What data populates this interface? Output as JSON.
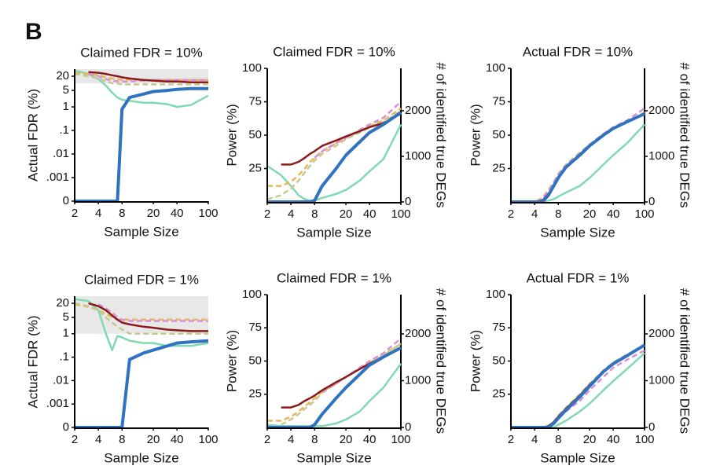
{
  "panel_label": "B",
  "chart_data": [
    {
      "type": "line",
      "title": "Claimed FDR = 10%",
      "xlabel": "Sample Size",
      "ylabel": "Actual FDR (%)",
      "xscale": "log",
      "yscale": "log",
      "xlim": [
        2,
        100
      ],
      "xticks": [
        2,
        4,
        8,
        20,
        40,
        100
      ],
      "ylim": [
        0,
        40
      ],
      "yticks": [
        0,
        {
          "value": 0.001,
          "label": ".001"
        },
        {
          "value": 0.01,
          "label": ".01"
        },
        {
          "value": 0.1,
          "label": ".1"
        },
        1,
        5,
        20
      ],
      "shade_ylim": [
        10,
        40
      ],
      "x": [
        2,
        3,
        4,
        5,
        6,
        7,
        8,
        10,
        15,
        20,
        30,
        40,
        60,
        100
      ],
      "series": [
        {
          "color": "#80d8b4",
          "dash": false,
          "values": [
            35,
            25,
            15,
            8,
            4,
            2.5,
            2,
            1.8,
            1.5,
            1.5,
            1.3,
            1,
            1.2,
            3
          ]
        },
        {
          "color": "#e6b85a",
          "dash": true,
          "values": [
            28,
            25,
            22,
            18,
            16,
            15,
            14,
            14,
            14,
            14,
            14,
            14,
            14,
            14
          ]
        },
        {
          "color": "#c8c890",
          "dash": true,
          "values": [
            25,
            20,
            16,
            12,
            10,
            10,
            9,
            9,
            9,
            9,
            9,
            9,
            9,
            9
          ]
        },
        {
          "color": "#d890d8",
          "dash": true,
          "values": [
            null,
            25,
            20,
            15,
            13,
            12,
            12,
            12,
            13,
            14,
            14,
            14,
            14,
            14
          ]
        },
        {
          "color": "#8b1a1a",
          "dash": false,
          "values": [
            null,
            30,
            28,
            25,
            22,
            20,
            18,
            16,
            14,
            13,
            12,
            12,
            11,
            11
          ]
        },
        {
          "color": "#2f73c0",
          "dash": false,
          "values": [
            0,
            0,
            0,
            0,
            0,
            0,
            0.8,
            2.5,
            3.5,
            4.5,
            5,
            5.5,
            6,
            6
          ]
        }
      ]
    },
    {
      "type": "line",
      "title": "Claimed FDR = 10%",
      "xlabel": "Sample Size",
      "ylabel": "Power (%)",
      "y2label": "# of identified true DEGs",
      "xscale": "log",
      "yscale": "linear",
      "xlim": [
        2,
        100
      ],
      "xticks": [
        2,
        4,
        8,
        20,
        40,
        100
      ],
      "ylim": [
        0,
        100
      ],
      "yticks": [
        25,
        50,
        75,
        100
      ],
      "y2lim": [
        0,
        2930
      ],
      "y2ticks": [
        0,
        1000,
        2000
      ],
      "x": [
        2,
        3,
        4,
        5,
        6,
        7,
        8,
        10,
        15,
        20,
        30,
        40,
        60,
        100
      ],
      "series": [
        {
          "color": "#80d8b4",
          "dash": false,
          "values": [
            27,
            20,
            12,
            5,
            2,
            1,
            1,
            3,
            6,
            9,
            16,
            23,
            32,
            58
          ]
        },
        {
          "color": "#e6b85a",
          "dash": true,
          "values": [
            12,
            12,
            15,
            20,
            25,
            30,
            33,
            38,
            44,
            48,
            53,
            57,
            61,
            70
          ]
        },
        {
          "color": "#c8c890",
          "dash": true,
          "values": [
            2,
            5,
            10,
            16,
            22,
            27,
            31,
            36,
            42,
            47,
            52,
            56,
            60,
            68
          ]
        },
        {
          "color": "#d890d8",
          "dash": true,
          "values": [
            null,
            null,
            null,
            null,
            null,
            null,
            33,
            38,
            44,
            48,
            54,
            58,
            63,
            75
          ]
        },
        {
          "color": "#8b1a1a",
          "dash": false,
          "values": [
            null,
            28,
            28,
            30,
            33,
            36,
            38,
            42,
            46,
            49,
            53,
            56,
            59,
            66
          ]
        },
        {
          "color": "#2f73c0",
          "dash": false,
          "values": [
            0,
            0,
            0,
            0,
            0,
            0,
            1,
            12,
            25,
            35,
            45,
            52,
            58,
            67
          ]
        }
      ]
    },
    {
      "type": "line",
      "title": "Actual FDR = 10%",
      "xlabel": "Sample Size",
      "ylabel": "Power (%)",
      "y2label": "# of identified true DEGs",
      "xscale": "log",
      "yscale": "linear",
      "xlim": [
        2,
        100
      ],
      "xticks": [
        2,
        4,
        8,
        20,
        40,
        100
      ],
      "ylim": [
        0,
        100
      ],
      "yticks": [
        25,
        50,
        75,
        100
      ],
      "y2lim": [
        0,
        2930
      ],
      "y2ticks": [
        0,
        1000,
        2000
      ],
      "x": [
        2,
        3,
        4,
        5,
        6,
        7,
        8,
        10,
        15,
        20,
        30,
        40,
        60,
        100
      ],
      "series": [
        {
          "color": "#80d8b4",
          "dash": false,
          "values": [
            0,
            0,
            0,
            0,
            1,
            2,
            4,
            7,
            12,
            18,
            28,
            35,
            44,
            58
          ]
        },
        {
          "color": "#e6b85a",
          "dash": true,
          "values": [
            0,
            0,
            0,
            2,
            8,
            14,
            20,
            27,
            36,
            43,
            50,
            55,
            60,
            67
          ]
        },
        {
          "color": "#c8c890",
          "dash": true,
          "values": [
            0,
            0,
            0,
            3,
            9,
            15,
            21,
            28,
            37,
            43,
            50,
            55,
            60,
            67
          ]
        },
        {
          "color": "#d890d8",
          "dash": true,
          "values": [
            0,
            0,
            0,
            2,
            8,
            14,
            20,
            27,
            36,
            43,
            51,
            56,
            61,
            70
          ]
        },
        {
          "color": "#8b1a1a",
          "dash": false,
          "values": [
            0,
            0,
            0,
            1,
            6,
            12,
            18,
            26,
            35,
            42,
            50,
            55,
            60,
            66
          ]
        },
        {
          "color": "#2f73c0",
          "dash": false,
          "values": [
            0,
            0,
            0,
            0,
            5,
            12,
            18,
            26,
            35,
            42,
            50,
            55,
            60,
            66
          ]
        }
      ]
    },
    {
      "type": "line",
      "title": "Claimed FDR = 1%",
      "xlabel": "Sample Size",
      "ylabel": "Actual FDR (%)",
      "xscale": "log",
      "yscale": "log",
      "xlim": [
        2,
        100
      ],
      "xticks": [
        2,
        4,
        8,
        20,
        40,
        100
      ],
      "ylim": [
        0,
        40
      ],
      "yticks": [
        0,
        {
          "value": 0.001,
          "label": ".001"
        },
        {
          "value": 0.01,
          "label": ".01"
        },
        {
          "value": 0.1,
          "label": ".1"
        },
        1,
        5,
        20
      ],
      "shade_ylim": [
        1,
        40
      ],
      "x": [
        2,
        3,
        4,
        5,
        6,
        7,
        8,
        10,
        15,
        20,
        30,
        40,
        60,
        100
      ],
      "series": [
        {
          "color": "#80d8b4",
          "dash": false,
          "values": [
            30,
            25,
            10,
            1,
            0.2,
            0.8,
            0.7,
            0.5,
            0.4,
            0.4,
            0.3,
            0.3,
            0.3,
            0.4
          ]
        },
        {
          "color": "#e6b85a",
          "dash": true,
          "values": [
            18,
            14,
            10,
            7,
            5,
            4,
            4,
            4,
            4,
            4,
            4,
            4,
            4,
            4
          ]
        },
        {
          "color": "#c8c890",
          "dash": true,
          "values": [
            20,
            15,
            10,
            5,
            3,
            2,
            1.5,
            1,
            1,
            1,
            1,
            1,
            1,
            1
          ]
        },
        {
          "color": "#d890d8",
          "dash": true,
          "values": [
            null,
            null,
            18,
            12,
            8,
            5,
            4,
            3.5,
            3.5,
            3.5,
            3.5,
            3.5,
            3.5,
            3.5
          ]
        },
        {
          "color": "#8b1a1a",
          "dash": false,
          "values": [
            null,
            20,
            15,
            10,
            6,
            4,
            3,
            2.5,
            2,
            1.8,
            1.5,
            1.4,
            1.3,
            1.3
          ]
        },
        {
          "color": "#2f73c0",
          "dash": false,
          "values": [
            0,
            0,
            0,
            0,
            0,
            0,
            0,
            0.08,
            0.15,
            0.2,
            0.3,
            0.4,
            0.45,
            0.5
          ]
        }
      ]
    },
    {
      "type": "line",
      "title": "Claimed FDR = 1%",
      "xlabel": "Sample Size",
      "ylabel": "Power (%)",
      "y2label": "# of identified true DEGs",
      "xscale": "log",
      "yscale": "linear",
      "xlim": [
        2,
        100
      ],
      "xticks": [
        2,
        4,
        8,
        20,
        40,
        100
      ],
      "ylim": [
        0,
        100
      ],
      "yticks": [
        25,
        50,
        75,
        100
      ],
      "y2lim": [
        0,
        2840
      ],
      "y2ticks": [
        0,
        1000,
        2000
      ],
      "x": [
        2,
        3,
        4,
        5,
        6,
        7,
        8,
        10,
        15,
        20,
        30,
        40,
        60,
        100
      ],
      "series": [
        {
          "color": "#80d8b4",
          "dash": false,
          "values": [
            2,
            1,
            1,
            1,
            1,
            1,
            1,
            1,
            3,
            6,
            12,
            20,
            30,
            48
          ]
        },
        {
          "color": "#e6b85a",
          "dash": true,
          "values": [
            5,
            5,
            8,
            12,
            16,
            19,
            22,
            27,
            33,
            38,
            44,
            49,
            54,
            63
          ]
        },
        {
          "color": "#c8c890",
          "dash": true,
          "values": [
            null,
            2,
            6,
            10,
            14,
            17,
            20,
            26,
            33,
            38,
            44,
            49,
            55,
            63
          ]
        },
        {
          "color": "#d890d8",
          "dash": true,
          "values": [
            null,
            null,
            null,
            null,
            null,
            null,
            null,
            27,
            33,
            38,
            45,
            50,
            56,
            67
          ]
        },
        {
          "color": "#8b1a1a",
          "dash": false,
          "values": [
            null,
            15,
            15,
            17,
            20,
            22,
            24,
            28,
            34,
            38,
            44,
            48,
            53,
            60
          ]
        },
        {
          "color": "#2f73c0",
          "dash": false,
          "values": [
            0,
            0,
            0,
            0,
            0,
            0,
            2,
            10,
            22,
            30,
            40,
            47,
            53,
            60
          ]
        }
      ]
    },
    {
      "type": "line",
      "title": "Actual FDR = 1%",
      "xlabel": "Sample Size",
      "ylabel": "Power (%)",
      "y2label": "# of identified true DEGs",
      "xscale": "log",
      "yscale": "linear",
      "xlim": [
        2,
        100
      ],
      "xticks": [
        2,
        4,
        8,
        20,
        40,
        100
      ],
      "ylim": [
        0,
        100
      ],
      "yticks": [
        25,
        50,
        75,
        100
      ],
      "y2lim": [
        0,
        2840
      ],
      "y2ticks": [
        0,
        1000,
        2000
      ],
      "x": [
        2,
        3,
        4,
        5,
        6,
        7,
        8,
        10,
        15,
        20,
        30,
        40,
        60,
        100
      ],
      "series": [
        {
          "color": "#80d8b4",
          "dash": false,
          "values": [
            0,
            0,
            0,
            0,
            0,
            0,
            2,
            5,
            12,
            18,
            28,
            35,
            44,
            56
          ]
        },
        {
          "color": "#e6b85a",
          "dash": true,
          "values": [
            0,
            0,
            0,
            0,
            1,
            4,
            8,
            14,
            24,
            32,
            42,
            48,
            54,
            62
          ]
        },
        {
          "color": "#c8c890",
          "dash": true,
          "values": [
            0,
            0,
            0,
            0,
            1,
            4,
            9,
            15,
            25,
            33,
            43,
            49,
            55,
            62
          ]
        },
        {
          "color": "#d890d8",
          "dash": true,
          "values": [
            0,
            0,
            0,
            0,
            1,
            3,
            7,
            12,
            20,
            28,
            38,
            45,
            51,
            58
          ]
        },
        {
          "color": "#8b1a1a",
          "dash": false,
          "values": [
            0,
            0,
            0,
            0,
            1,
            4,
            8,
            14,
            24,
            32,
            42,
            48,
            54,
            62
          ]
        },
        {
          "color": "#2f73c0",
          "dash": false,
          "values": [
            0,
            0,
            0,
            0,
            0,
            3,
            7,
            13,
            23,
            31,
            42,
            48,
            54,
            62
          ]
        }
      ]
    }
  ]
}
